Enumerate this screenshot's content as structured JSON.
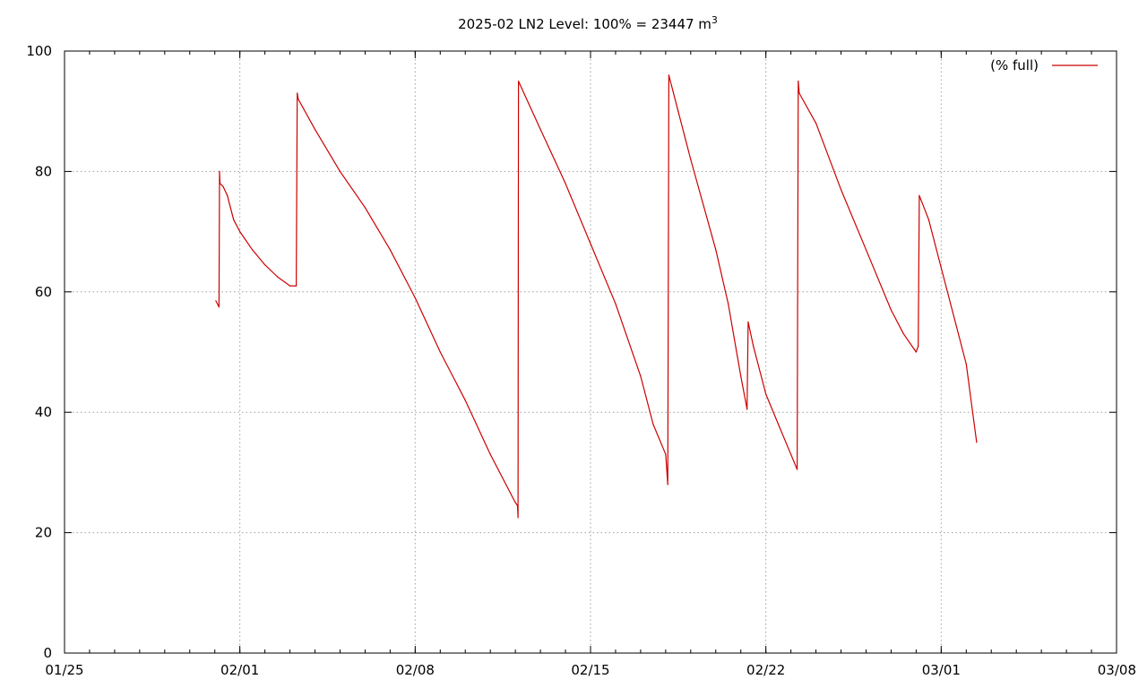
{
  "chart_data": {
    "type": "line",
    "title": {
      "prefix": "2025-02 LN2 Level: 100% = 23447 m",
      "superscript": "3"
    },
    "xlabel": "",
    "ylabel": "",
    "x_is_date": true,
    "xlim": [
      "2025-01-25",
      "2025-03-08"
    ],
    "ylim": [
      0,
      100
    ],
    "x_ticks": [
      {
        "date": "2025-01-25",
        "label": "01/25"
      },
      {
        "date": "2025-02-01",
        "label": "02/01"
      },
      {
        "date": "2025-02-08",
        "label": "02/08"
      },
      {
        "date": "2025-02-15",
        "label": "02/15"
      },
      {
        "date": "2025-02-22",
        "label": "02/22"
      },
      {
        "date": "2025-03-01",
        "label": "03/01"
      },
      {
        "date": "2025-03-08",
        "label": "03/08"
      }
    ],
    "y_ticks": [
      0,
      20,
      40,
      60,
      80,
      100
    ],
    "grid": true,
    "legend": {
      "position": "top-right"
    },
    "series": [
      {
        "name": "(% full)",
        "color": "#cc0000",
        "x": [
          "2025-01-31 01:00",
          "2025-01-31 04:00",
          "2025-01-31 04:30",
          "2025-01-31 05:00",
          "2025-01-31 08:00",
          "2025-01-31 12:00",
          "2025-01-31 18:00",
          "2025-02-01 00:00",
          "2025-02-01 12:00",
          "2025-02-02 00:00",
          "2025-02-02 12:00",
          "2025-02-03 00:00",
          "2025-02-03 06:00",
          "2025-02-03 07:00",
          "2025-02-03 08:00",
          "2025-02-04 00:00",
          "2025-02-05 00:00",
          "2025-02-06 00:00",
          "2025-02-07 00:00",
          "2025-02-08 00:00",
          "2025-02-09 00:00",
          "2025-02-10 00:00",
          "2025-02-11 00:00",
          "2025-02-12 00:00",
          "2025-02-12 02:00",
          "2025-02-12 02:30",
          "2025-02-12 03:00",
          "2025-02-13 00:00",
          "2025-02-14 00:00",
          "2025-02-15 00:00",
          "2025-02-16 00:00",
          "2025-02-17 00:00",
          "2025-02-17 12:00",
          "2025-02-18 00:00",
          "2025-02-18 02:00",
          "2025-02-18 03:00",
          "2025-02-18 12:00",
          "2025-02-19 00:00",
          "2025-02-20 00:00",
          "2025-02-20 12:00",
          "2025-02-21 00:00",
          "2025-02-21 06:00",
          "2025-02-21 07:00",
          "2025-02-21 12:00",
          "2025-02-22 00:00",
          "2025-02-22 12:00",
          "2025-02-23 00:00",
          "2025-02-23 06:00",
          "2025-02-23 07:00",
          "2025-02-23 08:00",
          "2025-02-24 00:00",
          "2025-02-25 00:00",
          "2025-02-26 00:00",
          "2025-02-27 00:00",
          "2025-02-27 12:00",
          "2025-02-28 00:00",
          "2025-02-28 02:00",
          "2025-02-28 03:00",
          "2025-02-28 12:00",
          "2025-03-01 00:00",
          "2025-03-02 00:00",
          "2025-03-02 10:00"
        ],
        "values": [
          58.5,
          57.5,
          80,
          78,
          77.5,
          76,
          72,
          70,
          67,
          64.5,
          62.5,
          61,
          61,
          93,
          92,
          87,
          80,
          74,
          67,
          59,
          50,
          42,
          33,
          25,
          24.5,
          22.5,
          95,
          87,
          78,
          68,
          58,
          46,
          38,
          33,
          28,
          96,
          90,
          82,
          67,
          58,
          46,
          40.5,
          55,
          51,
          43,
          38,
          33,
          30.5,
          95,
          93,
          88,
          77,
          67,
          57,
          53,
          50,
          51,
          76,
          72,
          64,
          48,
          35
        ]
      }
    ]
  }
}
